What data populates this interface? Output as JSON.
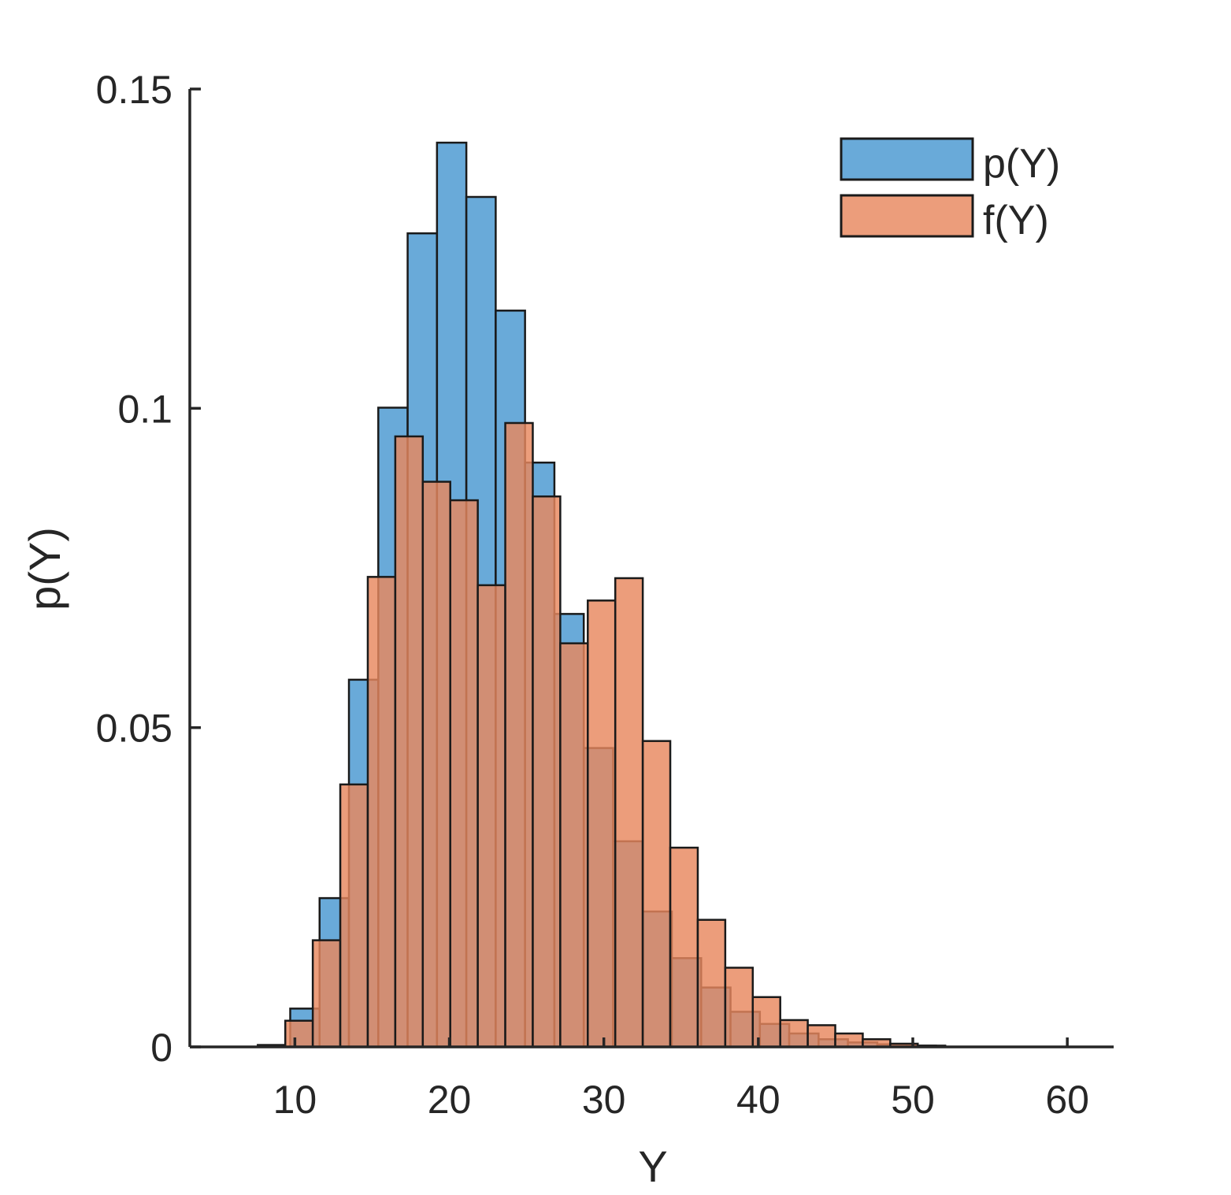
{
  "chart_data": {
    "type": "bar",
    "subtype": "overlaid-histogram",
    "title": "",
    "xlabel": "Y",
    "ylabel": "p(Y)",
    "xlim": [
      3.2,
      63
    ],
    "ylim": [
      0,
      0.15
    ],
    "xticks": [
      10,
      20,
      30,
      40,
      50,
      60
    ],
    "xtick_labels": [
      "10",
      "20",
      "30",
      "40",
      "50",
      "60"
    ],
    "yticks": [
      0,
      0.05,
      0.1,
      0.15
    ],
    "ytick_labels": [
      "0",
      "0.05",
      "0.1",
      "0.15"
    ],
    "grid": false,
    "legend_position": "top-right",
    "series": [
      {
        "name": "p(Y)",
        "color": "#5ca3d6",
        "edge_color": "#1a1a1a",
        "opacity": 0.92,
        "bin_width": 1.9,
        "bins": [
          {
            "x0": 9.7,
            "value": 0.006
          },
          {
            "x0": 11.6,
            "value": 0.0233
          },
          {
            "x0": 13.5,
            "value": 0.0575
          },
          {
            "x0": 15.4,
            "value": 0.1001
          },
          {
            "x0": 17.3,
            "value": 0.1274
          },
          {
            "x0": 19.2,
            "value": 0.1416
          },
          {
            "x0": 21.1,
            "value": 0.1331
          },
          {
            "x0": 23.0,
            "value": 0.1153
          },
          {
            "x0": 24.9,
            "value": 0.0915
          },
          {
            "x0": 26.8,
            "value": 0.0678
          },
          {
            "x0": 28.7,
            "value": 0.0468
          },
          {
            "x0": 30.6,
            "value": 0.0322
          },
          {
            "x0": 32.5,
            "value": 0.0212
          },
          {
            "x0": 34.4,
            "value": 0.0139
          },
          {
            "x0": 36.3,
            "value": 0.0093
          },
          {
            "x0": 38.2,
            "value": 0.0055
          },
          {
            "x0": 40.1,
            "value": 0.0036
          },
          {
            "x0": 42.0,
            "value": 0.0021
          },
          {
            "x0": 43.9,
            "value": 0.0012
          },
          {
            "x0": 45.8,
            "value": 0.0007
          },
          {
            "x0": 47.7,
            "value": 0.0004
          },
          {
            "x0": 49.6,
            "value": 0.0002
          }
        ]
      },
      {
        "name": "f(Y)",
        "color": "#e8875e",
        "edge_color": "#1a1a1a",
        "opacity": 0.82,
        "bin_width": 1.78,
        "bins": [
          {
            "x0": 7.6,
            "value": 0.0003
          },
          {
            "x0": 9.38,
            "value": 0.0041
          },
          {
            "x0": 11.16,
            "value": 0.0167
          },
          {
            "x0": 12.94,
            "value": 0.0411
          },
          {
            "x0": 14.72,
            "value": 0.0736
          },
          {
            "x0": 16.5,
            "value": 0.0956
          },
          {
            "x0": 18.28,
            "value": 0.0885
          },
          {
            "x0": 20.06,
            "value": 0.0856
          },
          {
            "x0": 21.84,
            "value": 0.0723
          },
          {
            "x0": 23.62,
            "value": 0.0977
          },
          {
            "x0": 25.4,
            "value": 0.0862
          },
          {
            "x0": 27.18,
            "value": 0.0632
          },
          {
            "x0": 28.96,
            "value": 0.0699
          },
          {
            "x0": 30.74,
            "value": 0.0734
          },
          {
            "x0": 32.52,
            "value": 0.0479
          },
          {
            "x0": 34.3,
            "value": 0.0312
          },
          {
            "x0": 36.08,
            "value": 0.0199
          },
          {
            "x0": 37.86,
            "value": 0.0124
          },
          {
            "x0": 39.64,
            "value": 0.0078
          },
          {
            "x0": 41.42,
            "value": 0.0042
          },
          {
            "x0": 43.2,
            "value": 0.0034
          },
          {
            "x0": 44.98,
            "value": 0.0021
          },
          {
            "x0": 46.76,
            "value": 0.0012
          },
          {
            "x0": 48.54,
            "value": 0.0005
          },
          {
            "x0": 50.32,
            "value": 0.0002
          }
        ]
      }
    ]
  }
}
